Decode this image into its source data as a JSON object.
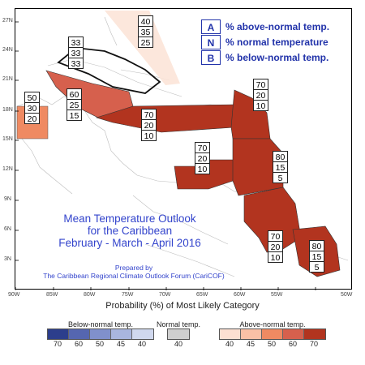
{
  "legend_key": [
    {
      "letter": "A",
      "text": "% above-normal temp."
    },
    {
      "letter": "N",
      "text": "% normal temperature"
    },
    {
      "letter": "B",
      "text": "% below-normal temp."
    }
  ],
  "map_title": {
    "line1": "Mean Temperature Outlook",
    "line2": "for the Caribbean",
    "line3": "February - March - April 2016"
  },
  "credit": {
    "line1": "Prepared by",
    "line2": "The Caribbean Regional Climate Outlook Forum (CariCOF)"
  },
  "latitude_labels": [
    "27N",
    "24N",
    "21N",
    "18N",
    "15N",
    "12N",
    "9N",
    "6N",
    "3N"
  ],
  "longitude_labels": [
    "90W",
    "85W",
    "80W",
    "75W",
    "70W",
    "65W",
    "60W",
    "55W",
    "50W"
  ],
  "probability_boxes": [
    {
      "region": "bahamas-north",
      "values": [
        "40",
        "35",
        "25"
      ],
      "fill": "#fbe3d6"
    },
    {
      "region": "cuba",
      "values": [
        "33",
        "33",
        "33"
      ],
      "fill": "none"
    },
    {
      "region": "belize",
      "values": [
        "50",
        "30",
        "20"
      ],
      "fill": "#ef8a62"
    },
    {
      "region": "jamaica-cayman",
      "values": [
        "60",
        "25",
        "15"
      ],
      "fill": "#d6604d"
    },
    {
      "region": "greater-antilles",
      "values": [
        "70",
        "20",
        "10"
      ],
      "fill": "#b2341f"
    },
    {
      "region": "leeward-islands",
      "values": [
        "70",
        "20",
        "10"
      ],
      "fill": "#b2341f"
    },
    {
      "region": "caribbean-sea",
      "values": [
        "70",
        "20",
        "10"
      ],
      "fill": "#b2341f"
    },
    {
      "region": "windward-barbados",
      "values": [
        "80",
        "15",
        "5"
      ],
      "fill": "#b2341f"
    },
    {
      "region": "guianas",
      "values": [
        "70",
        "20",
        "10"
      ],
      "fill": "#b2341f"
    },
    {
      "region": "suriname-fg",
      "values": [
        "80",
        "15",
        "5"
      ],
      "fill": "#b2341f"
    }
  ],
  "legend": {
    "title": "Probability (%) of Most Likely Category",
    "below": {
      "label": "Below-normal temp.",
      "ticks": [
        "70",
        "60",
        "50",
        "45",
        "40"
      ],
      "colors": [
        "#2c3e8c",
        "#5566b0",
        "#8090cc",
        "#a9b6df",
        "#d0d8ee"
      ]
    },
    "normal": {
      "label": "Normal temp.",
      "ticks": [
        "40"
      ],
      "colors": [
        "#cfcfcf"
      ]
    },
    "above": {
      "label": "Above-normal temp.",
      "ticks": [
        "40",
        "45",
        "50",
        "60",
        "70"
      ],
      "colors": [
        "#fde0d2",
        "#f9c0a6",
        "#ef8a62",
        "#d6604d",
        "#b2341f"
      ]
    }
  }
}
